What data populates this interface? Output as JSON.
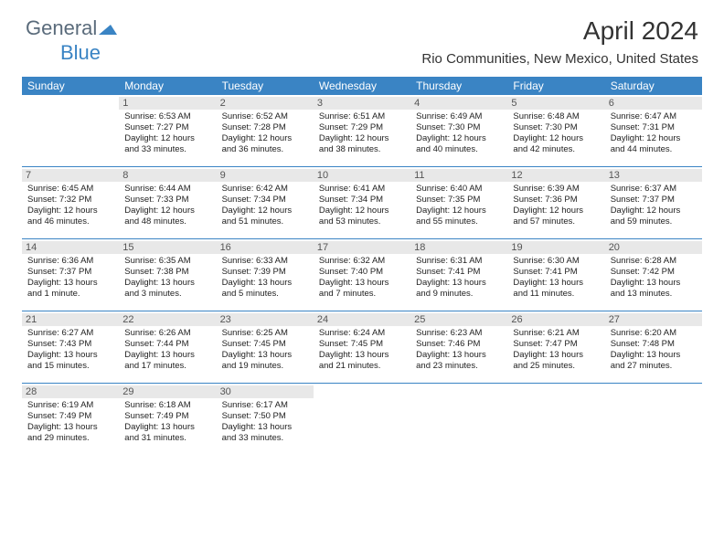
{
  "brand": {
    "part1": "General",
    "part2": "Blue",
    "part1_color": "#5a6b7b",
    "part2_color": "#3a84c4",
    "triangle_color": "#3a84c4"
  },
  "header": {
    "title": "April 2024",
    "subtitle": "Rio Communities, New Mexico, United States",
    "title_fontsize": 28,
    "subtitle_fontsize": 15
  },
  "colors": {
    "header_bg": "#3a84c4",
    "header_text": "#ffffff",
    "daynum_bg": "#e8e8e8",
    "daynum_text": "#555555",
    "body_text": "#222222",
    "week_divider": "#3a84c4",
    "page_bg": "#ffffff"
  },
  "day_headers": [
    "Sunday",
    "Monday",
    "Tuesday",
    "Wednesday",
    "Thursday",
    "Friday",
    "Saturday"
  ],
  "weeks": [
    [
      {
        "num": "",
        "sunrise": "",
        "sunset": "",
        "daylight": ""
      },
      {
        "num": "1",
        "sunrise": "Sunrise: 6:53 AM",
        "sunset": "Sunset: 7:27 PM",
        "daylight": "Daylight: 12 hours and 33 minutes."
      },
      {
        "num": "2",
        "sunrise": "Sunrise: 6:52 AM",
        "sunset": "Sunset: 7:28 PM",
        "daylight": "Daylight: 12 hours and 36 minutes."
      },
      {
        "num": "3",
        "sunrise": "Sunrise: 6:51 AM",
        "sunset": "Sunset: 7:29 PM",
        "daylight": "Daylight: 12 hours and 38 minutes."
      },
      {
        "num": "4",
        "sunrise": "Sunrise: 6:49 AM",
        "sunset": "Sunset: 7:30 PM",
        "daylight": "Daylight: 12 hours and 40 minutes."
      },
      {
        "num": "5",
        "sunrise": "Sunrise: 6:48 AM",
        "sunset": "Sunset: 7:30 PM",
        "daylight": "Daylight: 12 hours and 42 minutes."
      },
      {
        "num": "6",
        "sunrise": "Sunrise: 6:47 AM",
        "sunset": "Sunset: 7:31 PM",
        "daylight": "Daylight: 12 hours and 44 minutes."
      }
    ],
    [
      {
        "num": "7",
        "sunrise": "Sunrise: 6:45 AM",
        "sunset": "Sunset: 7:32 PM",
        "daylight": "Daylight: 12 hours and 46 minutes."
      },
      {
        "num": "8",
        "sunrise": "Sunrise: 6:44 AM",
        "sunset": "Sunset: 7:33 PM",
        "daylight": "Daylight: 12 hours and 48 minutes."
      },
      {
        "num": "9",
        "sunrise": "Sunrise: 6:42 AM",
        "sunset": "Sunset: 7:34 PM",
        "daylight": "Daylight: 12 hours and 51 minutes."
      },
      {
        "num": "10",
        "sunrise": "Sunrise: 6:41 AM",
        "sunset": "Sunset: 7:34 PM",
        "daylight": "Daylight: 12 hours and 53 minutes."
      },
      {
        "num": "11",
        "sunrise": "Sunrise: 6:40 AM",
        "sunset": "Sunset: 7:35 PM",
        "daylight": "Daylight: 12 hours and 55 minutes."
      },
      {
        "num": "12",
        "sunrise": "Sunrise: 6:39 AM",
        "sunset": "Sunset: 7:36 PM",
        "daylight": "Daylight: 12 hours and 57 minutes."
      },
      {
        "num": "13",
        "sunrise": "Sunrise: 6:37 AM",
        "sunset": "Sunset: 7:37 PM",
        "daylight": "Daylight: 12 hours and 59 minutes."
      }
    ],
    [
      {
        "num": "14",
        "sunrise": "Sunrise: 6:36 AM",
        "sunset": "Sunset: 7:37 PM",
        "daylight": "Daylight: 13 hours and 1 minute."
      },
      {
        "num": "15",
        "sunrise": "Sunrise: 6:35 AM",
        "sunset": "Sunset: 7:38 PM",
        "daylight": "Daylight: 13 hours and 3 minutes."
      },
      {
        "num": "16",
        "sunrise": "Sunrise: 6:33 AM",
        "sunset": "Sunset: 7:39 PM",
        "daylight": "Daylight: 13 hours and 5 minutes."
      },
      {
        "num": "17",
        "sunrise": "Sunrise: 6:32 AM",
        "sunset": "Sunset: 7:40 PM",
        "daylight": "Daylight: 13 hours and 7 minutes."
      },
      {
        "num": "18",
        "sunrise": "Sunrise: 6:31 AM",
        "sunset": "Sunset: 7:41 PM",
        "daylight": "Daylight: 13 hours and 9 minutes."
      },
      {
        "num": "19",
        "sunrise": "Sunrise: 6:30 AM",
        "sunset": "Sunset: 7:41 PM",
        "daylight": "Daylight: 13 hours and 11 minutes."
      },
      {
        "num": "20",
        "sunrise": "Sunrise: 6:28 AM",
        "sunset": "Sunset: 7:42 PM",
        "daylight": "Daylight: 13 hours and 13 minutes."
      }
    ],
    [
      {
        "num": "21",
        "sunrise": "Sunrise: 6:27 AM",
        "sunset": "Sunset: 7:43 PM",
        "daylight": "Daylight: 13 hours and 15 minutes."
      },
      {
        "num": "22",
        "sunrise": "Sunrise: 6:26 AM",
        "sunset": "Sunset: 7:44 PM",
        "daylight": "Daylight: 13 hours and 17 minutes."
      },
      {
        "num": "23",
        "sunrise": "Sunrise: 6:25 AM",
        "sunset": "Sunset: 7:45 PM",
        "daylight": "Daylight: 13 hours and 19 minutes."
      },
      {
        "num": "24",
        "sunrise": "Sunrise: 6:24 AM",
        "sunset": "Sunset: 7:45 PM",
        "daylight": "Daylight: 13 hours and 21 minutes."
      },
      {
        "num": "25",
        "sunrise": "Sunrise: 6:23 AM",
        "sunset": "Sunset: 7:46 PM",
        "daylight": "Daylight: 13 hours and 23 minutes."
      },
      {
        "num": "26",
        "sunrise": "Sunrise: 6:21 AM",
        "sunset": "Sunset: 7:47 PM",
        "daylight": "Daylight: 13 hours and 25 minutes."
      },
      {
        "num": "27",
        "sunrise": "Sunrise: 6:20 AM",
        "sunset": "Sunset: 7:48 PM",
        "daylight": "Daylight: 13 hours and 27 minutes."
      }
    ],
    [
      {
        "num": "28",
        "sunrise": "Sunrise: 6:19 AM",
        "sunset": "Sunset: 7:49 PM",
        "daylight": "Daylight: 13 hours and 29 minutes."
      },
      {
        "num": "29",
        "sunrise": "Sunrise: 6:18 AM",
        "sunset": "Sunset: 7:49 PM",
        "daylight": "Daylight: 13 hours and 31 minutes."
      },
      {
        "num": "30",
        "sunrise": "Sunrise: 6:17 AM",
        "sunset": "Sunset: 7:50 PM",
        "daylight": "Daylight: 13 hours and 33 minutes."
      },
      {
        "num": "",
        "sunrise": "",
        "sunset": "",
        "daylight": ""
      },
      {
        "num": "",
        "sunrise": "",
        "sunset": "",
        "daylight": ""
      },
      {
        "num": "",
        "sunrise": "",
        "sunset": "",
        "daylight": ""
      },
      {
        "num": "",
        "sunrise": "",
        "sunset": "",
        "daylight": ""
      }
    ]
  ]
}
